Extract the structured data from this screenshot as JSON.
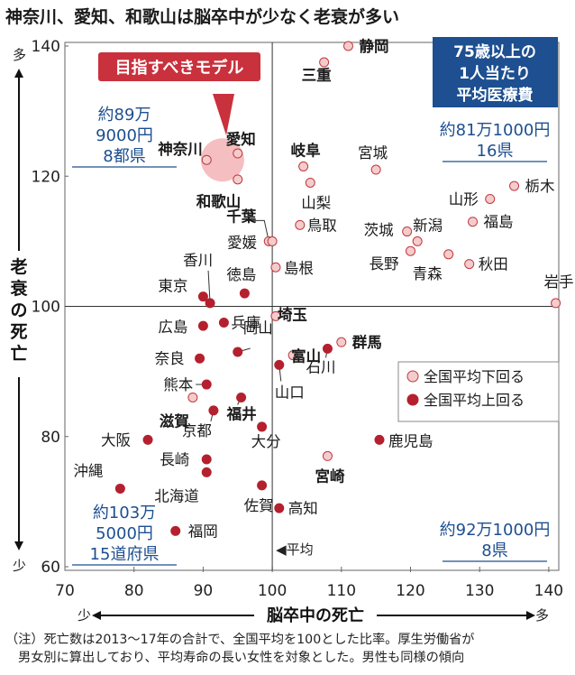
{
  "title": "神奈川、愛知、和歌山は脳卒中が少なく老衰が多い",
  "colors": {
    "below_avg": "#f4cccc",
    "above_avg": "#b5202e",
    "quad_text": "#1d4f91",
    "callout": "#c9313d",
    "highlight": "#f3b3b5"
  },
  "chart_data": {
    "type": "scatter",
    "xlabel": "脳卒中の死亡",
    "ylabel": "老衰の死亡",
    "xlim": [
      70,
      142
    ],
    "ylim": [
      60,
      142
    ],
    "x_ticks": [
      70,
      80,
      90,
      100,
      110,
      120,
      130,
      140
    ],
    "y_ticks": [
      60,
      80,
      100,
      120,
      140
    ],
    "x_low": "少",
    "x_high": "多",
    "y_low": "少",
    "y_high": "多",
    "reference": {
      "x": 100,
      "y": 100,
      "label": "◀平均"
    },
    "legend": [
      {
        "key": "below",
        "label": "全国平均下回る"
      },
      {
        "key": "above",
        "label": "全国平均上回る"
      }
    ],
    "points": [
      {
        "name": "静岡",
        "x": 111,
        "y": 140,
        "group": "below",
        "bold": true
      },
      {
        "name": "三重",
        "x": 107.5,
        "y": 137.5,
        "group": "below",
        "bold": true
      },
      {
        "name": "神奈川",
        "x": 90.5,
        "y": 122.5,
        "group": "below",
        "bold": true
      },
      {
        "name": "愛知",
        "x": 95,
        "y": 123.5,
        "group": "below",
        "bold": true
      },
      {
        "name": "和歌山",
        "x": 95,
        "y": 119.5,
        "group": "below",
        "bold": true
      },
      {
        "name": "岐阜",
        "x": 104.5,
        "y": 121.5,
        "group": "below",
        "bold": true
      },
      {
        "name": "宮城",
        "x": 115,
        "y": 121,
        "group": "below",
        "bold": false
      },
      {
        "name": "山梨",
        "x": 105.5,
        "y": 119,
        "group": "below",
        "bold": false
      },
      {
        "name": "栃木",
        "x": 135,
        "y": 118.5,
        "group": "below",
        "bold": false
      },
      {
        "name": "山形",
        "x": 131.5,
        "y": 116.5,
        "group": "below",
        "bold": false
      },
      {
        "name": "千葉",
        "x": 99.5,
        "y": 110,
        "group": "below",
        "bold": true
      },
      {
        "name": "愛媛",
        "x": 100,
        "y": 110,
        "group": "below",
        "bold": false
      },
      {
        "name": "鳥取",
        "x": 104,
        "y": 112.5,
        "group": "below",
        "bold": false
      },
      {
        "name": "茨城",
        "x": 119.5,
        "y": 111.5,
        "group": "below",
        "bold": false
      },
      {
        "name": "新潟",
        "x": 121,
        "y": 110,
        "group": "below",
        "bold": false
      },
      {
        "name": "福島",
        "x": 129,
        "y": 113,
        "group": "below",
        "bold": false
      },
      {
        "name": "長野",
        "x": 120,
        "y": 108.5,
        "group": "below",
        "bold": false
      },
      {
        "name": "青森",
        "x": 125.5,
        "y": 108,
        "group": "below",
        "bold": false
      },
      {
        "name": "秋田",
        "x": 128.5,
        "y": 106.5,
        "group": "below",
        "bold": false
      },
      {
        "name": "島根",
        "x": 100.5,
        "y": 106,
        "group": "below",
        "bold": false
      },
      {
        "name": "岩手",
        "x": 141,
        "y": 100.5,
        "group": "below",
        "bold": false
      },
      {
        "name": "香川",
        "x": 91,
        "y": 100.5,
        "group": "above",
        "bold": false
      },
      {
        "name": "東京",
        "x": 90,
        "y": 101.5,
        "group": "above",
        "bold": false
      },
      {
        "name": "徳島",
        "x": 96,
        "y": 102,
        "group": "above",
        "bold": false
      },
      {
        "name": "広島",
        "x": 90,
        "y": 97,
        "group": "above",
        "bold": false
      },
      {
        "name": "兵庫",
        "x": 93,
        "y": 97.5,
        "group": "above",
        "bold": false
      },
      {
        "name": "埼玉",
        "x": 100.5,
        "y": 98.5,
        "group": "below",
        "bold": true
      },
      {
        "name": "群馬",
        "x": 110,
        "y": 94.5,
        "group": "below",
        "bold": true
      },
      {
        "name": "富山",
        "x": 103,
        "y": 92.5,
        "group": "below",
        "bold": true
      },
      {
        "name": "石川",
        "x": 108,
        "y": 93.5,
        "group": "above",
        "bold": false
      },
      {
        "name": "奈良",
        "x": 89.5,
        "y": 92,
        "group": "above",
        "bold": false
      },
      {
        "name": "岡山",
        "x": 95,
        "y": 93,
        "group": "above",
        "bold": false
      },
      {
        "name": "山口",
        "x": 101,
        "y": 91,
        "group": "above",
        "bold": false
      },
      {
        "name": "熊本",
        "x": 90.5,
        "y": 88,
        "group": "above",
        "bold": false
      },
      {
        "name": "滋賀",
        "x": 88.5,
        "y": 86,
        "group": "below",
        "bold": true
      },
      {
        "name": "福井",
        "x": 95.5,
        "y": 86,
        "group": "above",
        "bold": true
      },
      {
        "name": "京都",
        "x": 91.5,
        "y": 84,
        "group": "above",
        "bold": false
      },
      {
        "name": "大分",
        "x": 98.5,
        "y": 81.5,
        "group": "above",
        "bold": false
      },
      {
        "name": "大阪",
        "x": 82,
        "y": 79.5,
        "group": "above",
        "bold": false
      },
      {
        "name": "鹿児島",
        "x": 115.5,
        "y": 79.5,
        "group": "above",
        "bold": false
      },
      {
        "name": "宮崎",
        "x": 108,
        "y": 77,
        "group": "below",
        "bold": true
      },
      {
        "name": "長崎",
        "x": 90.5,
        "y": 76.5,
        "group": "above",
        "bold": false
      },
      {
        "name": "北海道",
        "x": 90.5,
        "y": 74.5,
        "group": "above",
        "bold": false
      },
      {
        "name": "沖縄",
        "x": 78,
        "y": 72,
        "group": "above",
        "bold": false
      },
      {
        "name": "佐賀",
        "x": 98.5,
        "y": 72.5,
        "group": "above",
        "bold": false
      },
      {
        "name": "高知",
        "x": 101,
        "y": 69,
        "group": "above",
        "bold": false
      },
      {
        "name": "福岡",
        "x": 86,
        "y": 65.5,
        "group": "above",
        "bold": false
      }
    ]
  },
  "annotations": {
    "callout": "目指すべきモデル",
    "cost_header": [
      "75歳以上の",
      "1人当たり",
      "平均医療費"
    ],
    "q_upper_left": [
      "約89万",
      "9000円",
      "8都県"
    ],
    "q_upper_right": [
      "約81万1000円",
      "16県"
    ],
    "q_lower_left": [
      "約103万",
      "5000円",
      "15道府県"
    ],
    "q_lower_right": [
      "約92万1000円",
      "8県"
    ]
  },
  "footnote": [
    "（注）死亡数は2013～17年の合計で、全国平均を100とした比率。厚生労働省が",
    "男女別に算出しており、平均寿命の長い女性を対象とした。男性も同様の傾向"
  ]
}
